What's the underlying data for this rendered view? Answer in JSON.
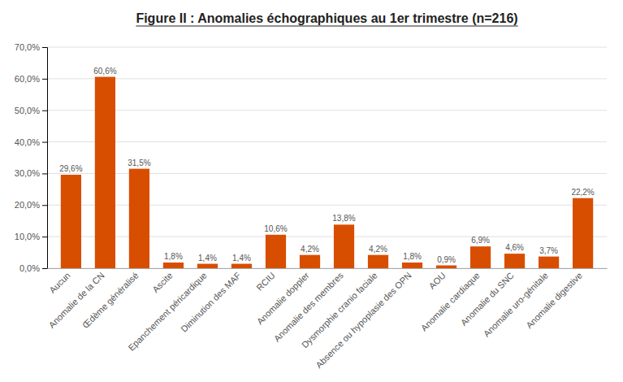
{
  "chart_data": {
    "type": "bar",
    "title": "Figure II : Anomalies échographiques au 1er trimestre (n=216)",
    "categories": [
      "Aucun",
      "Anomalie de la CN",
      "Œdème généralisé",
      "Ascite",
      "Epanchement péricardique",
      "Diminution des MAF",
      "RCIU",
      "Anomalie doppler",
      "Anomalie des membres",
      "Dysmorphie cranio faciale",
      "Absence ou hypoplasie des OPN",
      "AOU",
      "Anomalie cardiaque",
      "Anomalie du SNC",
      "Anomalie uro-génitale",
      "Anomalie digestive"
    ],
    "values": [
      29.6,
      60.6,
      31.5,
      1.8,
      1.4,
      1.4,
      10.6,
      4.2,
      13.8,
      4.2,
      1.8,
      0.9,
      6.9,
      4.6,
      3.7,
      22.2
    ],
    "value_labels": [
      "29,6%",
      "60,6%",
      "31,5%",
      "1,8%",
      "1,4%",
      "1,4%",
      "10,6%",
      "4,2%",
      "13,8%",
      "4,2%",
      "1,8%",
      "0,9%",
      "6,9%",
      "4,6%",
      "3,7%",
      "22,2%"
    ],
    "color": "#D84E00",
    "ylim": [
      0,
      70
    ],
    "yticks": [
      {
        "value": 0,
        "label": "0,0%"
      },
      {
        "value": 10,
        "label": "10,0%"
      },
      {
        "value": 20,
        "label": "20,0%"
      },
      {
        "value": 30,
        "label": "30,0%"
      },
      {
        "value": 40,
        "label": "40,0%"
      },
      {
        "value": 50,
        "label": "50,0%"
      },
      {
        "value": 60,
        "label": "60,0%"
      },
      {
        "value": 70,
        "label": "70,0%"
      }
    ],
    "grid": true
  }
}
